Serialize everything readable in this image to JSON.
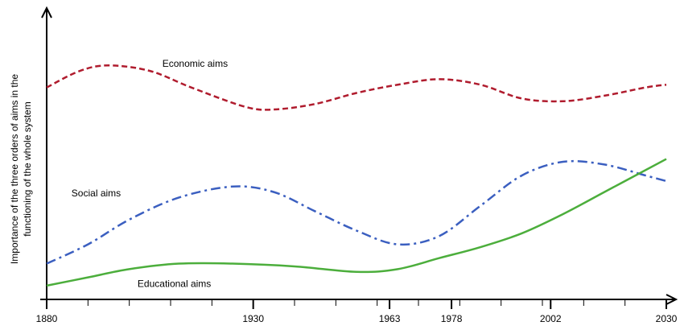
{
  "chart_data": {
    "type": "line",
    "title": "",
    "xlabel": "",
    "ylabel_line1": "Importance  of the three orders of  aims in the",
    "ylabel_line2": "functioning of the whole system",
    "x_ticks": [
      1880,
      1930,
      1963,
      1978,
      2002,
      2030
    ],
    "x_tick_labels": [
      "1880",
      "1930",
      "1963",
      "1978",
      "2002",
      "2030"
    ],
    "xlim": [
      1880,
      2033
    ],
    "ylim": [
      0,
      10
    ],
    "grid": false,
    "series": [
      {
        "name": "Economic aims",
        "color": "#b01c2e",
        "style": "dashed",
        "x": [
          1880,
          1888,
          1895,
          1905,
          1915,
          1928,
          1935,
          1945,
          1955,
          1965,
          1975,
          1985,
          1995,
          2005,
          2015,
          2025,
          2030
        ],
        "y": [
          7.7,
          8.3,
          8.5,
          8.3,
          7.7,
          7.0,
          6.9,
          7.1,
          7.5,
          7.8,
          8.0,
          7.8,
          7.3,
          7.2,
          7.4,
          7.7,
          7.8
        ]
      },
      {
        "name": "Social aims",
        "color": "#3b5fc0",
        "style": "dashdot",
        "x": [
          1880,
          1890,
          1900,
          1912,
          1925,
          1935,
          1945,
          1955,
          1965,
          1975,
          1985,
          1995,
          2005,
          2015,
          2025,
          2030
        ],
        "y": [
          1.3,
          2.0,
          2.9,
          3.7,
          4.1,
          3.9,
          3.2,
          2.5,
          2.0,
          2.3,
          3.4,
          4.5,
          5.0,
          4.9,
          4.5,
          4.3
        ]
      },
      {
        "name": "Educational aims",
        "color": "#4cae3c",
        "style": "solid",
        "x": [
          1880,
          1890,
          1900,
          1912,
          1925,
          1940,
          1955,
          1965,
          1975,
          1985,
          1995,
          2005,
          2015,
          2025,
          2030
        ],
        "y": [
          0.5,
          0.8,
          1.1,
          1.3,
          1.3,
          1.2,
          1.0,
          1.1,
          1.5,
          1.9,
          2.4,
          3.1,
          3.9,
          4.7,
          5.1
        ]
      }
    ],
    "label_positions_data": [
      {
        "series": 0,
        "x": 1908,
        "y": 8.45
      },
      {
        "series": 1,
        "x": 1886,
        "y": 3.75
      },
      {
        "series": 2,
        "x": 1902,
        "y": 0.45
      }
    ]
  }
}
